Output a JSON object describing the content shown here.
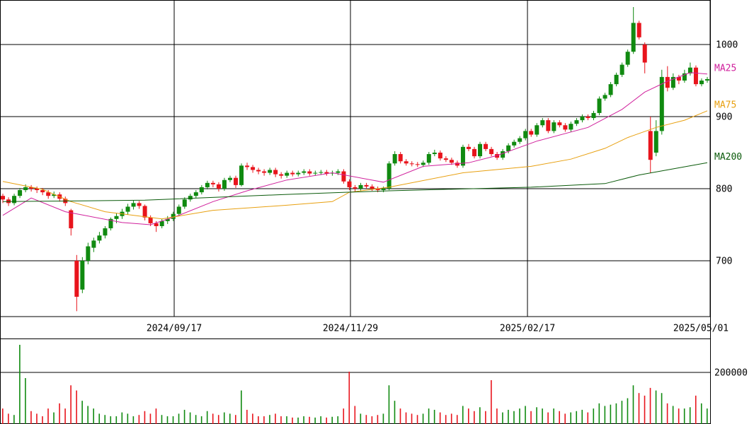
{
  "chart_data": [
    {
      "type": "candlestick",
      "xlim": [
        0,
        125
      ],
      "ylim": [
        622.5,
        1061.8
      ],
      "yticks": [
        700,
        800,
        900,
        1000
      ],
      "xticks": [
        {
          "value": 30.66,
          "label": "2024/09/17"
        },
        {
          "value": 61.69,
          "label": "2024/11/29"
        },
        {
          "value": 92.85,
          "label": "2025/02/17"
        },
        {
          "value": 125,
          "label": "2025/05/01"
        }
      ],
      "up_color": "#108a10",
      "down_color": "#e8141c",
      "candles": [
        [
          790,
          793,
          780,
          785
        ],
        [
          785,
          788,
          776,
          780
        ],
        [
          780,
          793,
          777,
          790
        ],
        [
          790,
          801,
          787,
          798
        ],
        [
          798,
          806,
          795,
          802
        ],
        [
          802,
          805,
          796,
          800
        ],
        [
          800,
          803,
          794,
          798
        ],
        [
          798,
          801,
          791,
          795
        ],
        [
          795,
          798,
          786,
          790
        ],
        [
          790,
          796,
          787,
          792
        ],
        [
          792,
          795,
          782,
          786
        ],
        [
          786,
          789,
          776,
          780
        ],
        [
          770,
          772,
          735,
          745
        ],
        [
          700,
          708,
          630,
          650
        ],
        [
          660,
          705,
          655,
          700
        ],
        [
          700,
          725,
          695,
          720
        ],
        [
          718,
          732,
          712,
          728
        ],
        [
          728,
          740,
          724,
          735
        ],
        [
          735,
          748,
          731,
          745
        ],
        [
          745,
          760,
          742,
          758
        ],
        [
          758,
          766,
          752,
          762
        ],
        [
          762,
          772,
          758,
          768
        ],
        [
          768,
          779,
          764,
          775
        ],
        [
          775,
          784,
          771,
          780
        ],
        [
          780,
          783,
          772,
          776
        ],
        [
          776,
          778,
          756,
          760
        ],
        [
          760,
          763,
          748,
          752
        ],
        [
          752,
          755,
          740,
          748
        ],
        [
          748,
          758,
          745,
          755
        ],
        [
          755,
          762,
          751,
          758
        ],
        [
          758,
          768,
          755,
          765
        ],
        [
          765,
          778,
          762,
          775
        ],
        [
          775,
          788,
          772,
          785
        ],
        [
          785,
          793,
          782,
          790
        ],
        [
          790,
          798,
          787,
          795
        ],
        [
          795,
          805,
          792,
          802
        ],
        [
          802,
          811,
          799,
          808
        ],
        [
          808,
          811,
          802,
          806
        ],
        [
          806,
          809,
          796,
          800
        ],
        [
          800,
          815,
          797,
          812
        ],
        [
          812,
          818,
          809,
          815
        ],
        [
          815,
          818,
          801,
          805
        ],
        [
          805,
          835,
          803,
          832
        ],
        [
          832,
          836,
          826,
          830
        ],
        [
          830,
          833,
          822,
          826
        ],
        [
          826,
          829,
          820,
          824
        ],
        [
          824,
          827,
          818,
          822
        ],
        [
          822,
          829,
          819,
          826
        ],
        [
          826,
          829,
          816,
          820
        ],
        [
          820,
          823,
          814,
          818
        ],
        [
          818,
          825,
          815,
          822
        ],
        [
          822,
          825,
          817,
          820
        ],
        [
          820,
          825,
          817,
          822
        ],
        [
          822,
          827,
          819,
          824
        ],
        [
          824,
          827,
          818,
          821
        ],
        [
          821,
          825,
          818,
          822
        ],
        [
          822,
          826,
          819,
          823
        ],
        [
          823,
          826,
          818,
          821
        ],
        [
          821,
          825,
          818,
          822
        ],
        [
          822,
          827,
          819,
          824
        ],
        [
          824,
          827,
          807,
          810
        ],
        [
          810,
          813,
          798,
          802
        ],
        [
          802,
          805,
          796,
          800
        ],
        [
          800,
          808,
          797,
          805
        ],
        [
          805,
          808,
          800,
          803
        ],
        [
          803,
          806,
          797,
          800
        ],
        [
          800,
          803,
          795,
          798
        ],
        [
          798,
          803,
          795,
          800
        ],
        [
          800,
          838,
          798,
          835
        ],
        [
          835,
          852,
          832,
          848
        ],
        [
          848,
          851,
          835,
          838
        ],
        [
          838,
          841,
          832,
          835
        ],
        [
          835,
          838,
          831,
          834
        ],
        [
          834,
          837,
          830,
          833
        ],
        [
          833,
          839,
          830,
          836
        ],
        [
          836,
          851,
          833,
          848
        ],
        [
          848,
          854,
          845,
          850
        ],
        [
          850,
          853,
          839,
          842
        ],
        [
          842,
          845,
          837,
          840
        ],
        [
          840,
          843,
          833,
          836
        ],
        [
          836,
          839,
          829,
          832
        ],
        [
          832,
          861,
          829,
          858
        ],
        [
          858,
          862,
          852,
          855
        ],
        [
          855,
          858,
          842,
          845
        ],
        [
          845,
          865,
          842,
          862
        ],
        [
          862,
          865,
          852,
          855
        ],
        [
          855,
          858,
          845,
          848
        ],
        [
          848,
          851,
          840,
          843
        ],
        [
          843,
          855,
          840,
          852
        ],
        [
          852,
          863,
          849,
          860
        ],
        [
          860,
          868,
          857,
          865
        ],
        [
          865,
          873,
          862,
          870
        ],
        [
          870,
          883,
          867,
          880
        ],
        [
          880,
          883,
          872,
          875
        ],
        [
          875,
          891,
          872,
          888
        ],
        [
          888,
          898,
          885,
          895
        ],
        [
          895,
          898,
          877,
          880
        ],
        [
          880,
          895,
          877,
          892
        ],
        [
          892,
          895,
          885,
          888
        ],
        [
          888,
          891,
          879,
          882
        ],
        [
          882,
          893,
          879,
          890
        ],
        [
          890,
          898,
          887,
          895
        ],
        [
          895,
          903,
          892,
          900
        ],
        [
          900,
          903,
          895,
          898
        ],
        [
          898,
          908,
          895,
          905
        ],
        [
          905,
          928,
          902,
          925
        ],
        [
          925,
          933,
          922,
          930
        ],
        [
          930,
          948,
          927,
          945
        ],
        [
          945,
          961,
          942,
          958
        ],
        [
          958,
          975,
          955,
          972
        ],
        [
          972,
          993,
          969,
          990
        ],
        [
          990,
          1052,
          987,
          1030
        ],
        [
          1030,
          1033,
          1007,
          1010
        ],
        [
          1000,
          1003,
          960,
          975
        ],
        [
          880,
          900,
          822,
          840
        ],
        [
          850,
          895,
          845,
          880
        ],
        [
          880,
          965,
          875,
          955
        ],
        [
          955,
          970,
          935,
          940
        ],
        [
          940,
          960,
          937,
          955
        ],
        [
          955,
          958,
          945,
          950
        ],
        [
          950,
          965,
          947,
          960
        ],
        [
          960,
          975,
          957,
          968
        ],
        [
          968,
          971,
          942,
          945
        ],
        [
          945,
          953,
          942,
          950
        ],
        [
          950,
          955,
          947,
          952
        ]
      ],
      "series": [
        {
          "name": "MA25",
          "color": "#d0209c",
          "x": [
            0,
            5,
            11,
            21,
            26,
            31,
            37,
            43,
            50,
            58,
            67,
            74,
            82,
            87,
            94,
            103,
            109,
            113,
            117,
            121,
            124
          ],
          "values": [
            763,
            787,
            768,
            753,
            750,
            763,
            782,
            797,
            812,
            822,
            809,
            831,
            836,
            846,
            866,
            885,
            910,
            934,
            949,
            961,
            959
          ]
        },
        {
          "name": "MA75",
          "color": "#e8a010",
          "x": [
            0,
            7,
            12,
            18,
            28,
            37,
            50,
            58,
            61,
            68,
            81,
            93,
            100,
            106,
            110,
            115,
            120,
            124
          ],
          "values": [
            810,
            799,
            782,
            768,
            758,
            770,
            777,
            782,
            795,
            802,
            822,
            831,
            841,
            856,
            871,
            885,
            895,
            908
          ]
        },
        {
          "name": "MA200",
          "color": "#0a5a0a",
          "x": [
            0,
            25,
            50,
            68,
            93,
            106,
            112,
            124
          ],
          "values": [
            782,
            784,
            792,
            797,
            802,
            807,
            819,
            836
          ]
        }
      ]
    },
    {
      "type": "bar",
      "ylim": [
        0,
        328767
      ],
      "yticks": [
        200000
      ],
      "values": [
        60000,
        40000,
        35000,
        307000,
        178000,
        50000,
        40000,
        30000,
        60000,
        45000,
        80000,
        60000,
        150000,
        130000,
        90000,
        70000,
        60000,
        40000,
        35000,
        30000,
        30000,
        45000,
        40000,
        30000,
        35000,
        50000,
        40000,
        60000,
        35000,
        30000,
        30000,
        40000,
        55000,
        45000,
        35000,
        30000,
        50000,
        40000,
        35000,
        45000,
        40000,
        35000,
        130000,
        55000,
        40000,
        30000,
        30000,
        35000,
        40000,
        30000,
        30000,
        25000,
        25000,
        30000,
        28000,
        25000,
        30000,
        25000,
        28000,
        30000,
        60000,
        203000,
        70000,
        40000,
        35000,
        30000,
        35000,
        40000,
        150000,
        90000,
        60000,
        45000,
        40000,
        35000,
        40000,
        60000,
        55000,
        45000,
        35000,
        40000,
        35000,
        70000,
        60000,
        50000,
        65000,
        50000,
        170000,
        60000,
        45000,
        55000,
        50000,
        60000,
        70000,
        50000,
        65000,
        60000,
        45000,
        60000,
        50000,
        40000,
        45000,
        50000,
        55000,
        45000,
        60000,
        80000,
        70000,
        75000,
        80000,
        90000,
        100000,
        150000,
        120000,
        110000,
        140000,
        130000,
        120000,
        80000,
        70000,
        60000,
        60000,
        65000,
        110000,
        80000,
        60000
      ]
    }
  ]
}
